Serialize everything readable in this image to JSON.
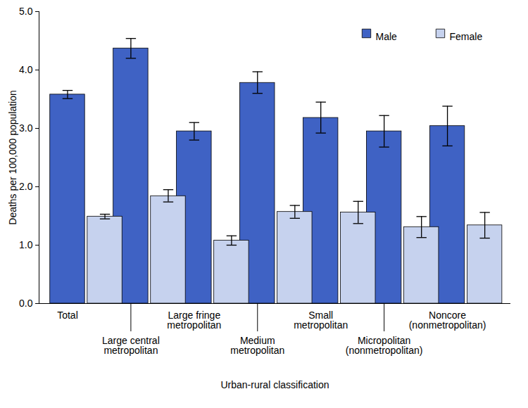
{
  "chart_data": {
    "type": "bar",
    "x_label": "Urban-rural classification",
    "y_label": "Deaths per 100,000 population",
    "categories": [
      "Total",
      "Large central\nmetropolitan",
      "Large fringe\nmetropolitan",
      "Medium\nmetropolitan",
      "Small\nmetropolitan",
      "Micropolitan\n(nonmetropolitan)",
      "Noncore\n(nonmetropolitan)"
    ],
    "series": [
      {
        "name": "Male",
        "color": "#3f62c4",
        "values": [
          3.58,
          4.37,
          2.95,
          3.78,
          3.18,
          2.95,
          3.04
        ],
        "error_low": [
          3.51,
          4.2,
          2.8,
          3.6,
          2.92,
          2.68,
          2.7
        ],
        "error_high": [
          3.65,
          4.54,
          3.1,
          3.97,
          3.45,
          3.22,
          3.38
        ]
      },
      {
        "name": "Female",
        "color": "#c6d2ee",
        "values": [
          1.49,
          1.84,
          1.08,
          1.57,
          1.56,
          1.31,
          1.34
        ],
        "error_low": [
          1.45,
          1.74,
          1.0,
          1.46,
          1.37,
          1.13,
          1.12
        ],
        "error_high": [
          1.53,
          1.95,
          1.16,
          1.68,
          1.75,
          1.49,
          1.56
        ]
      }
    ],
    "ylim": [
      0,
      5
    ],
    "yticks": [
      0,
      1,
      2,
      3,
      4,
      5
    ],
    "grid": false,
    "legend": "upper right"
  }
}
